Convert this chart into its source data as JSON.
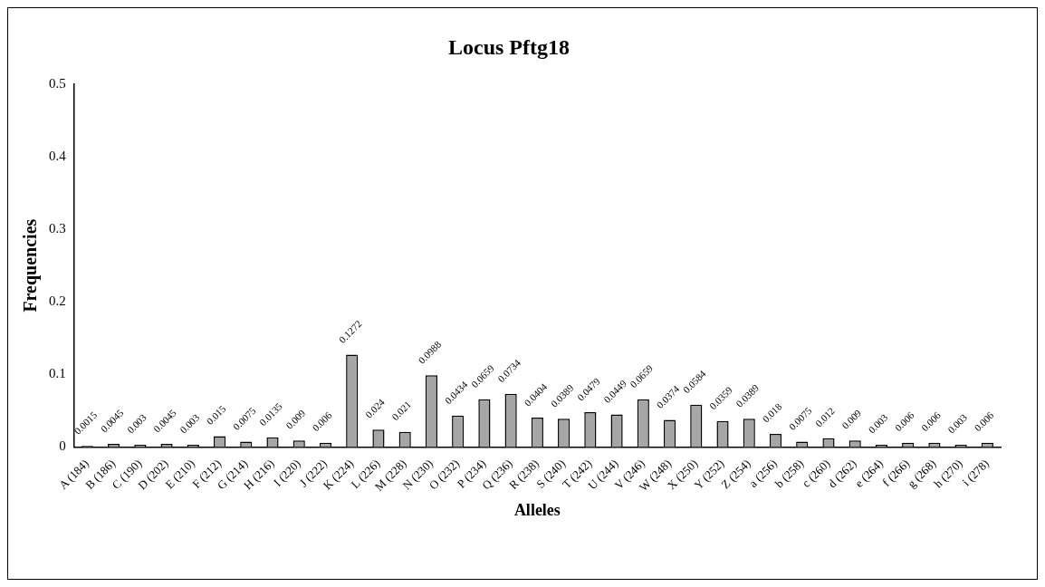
{
  "chart_data": {
    "type": "bar",
    "title": "Locus Pftg18",
    "xlabel": "Alleles",
    "ylabel": "Frequencies",
    "categories": [
      "A (184)",
      "B (186)",
      "C (190)",
      "D (202)",
      "E (210)",
      "F (212)",
      "G (214)",
      "H (216)",
      "I (220)",
      "J (222)",
      "K (224)",
      "L (226)",
      "M (228)",
      "N (230)",
      "O (232)",
      "P (234)",
      "Q (236)",
      "R (238)",
      "S (240)",
      "T (242)",
      "U (244)",
      "V (246)",
      "W (248)",
      "X (250)",
      "Y (252)",
      "Z (254)",
      "a (256)",
      "b (258)",
      "c (260)",
      "d (262)",
      "e (264)",
      "f (266)",
      "g (268)",
      "h (270)",
      "i (278)"
    ],
    "values": [
      0.0015,
      0.0045,
      0.003,
      0.0045,
      0.003,
      0.015,
      0.0075,
      0.0135,
      0.009,
      0.006,
      0.1272,
      0.024,
      0.021,
      0.0988,
      0.0434,
      0.0659,
      0.0734,
      0.0404,
      0.0389,
      0.0479,
      0.0449,
      0.0659,
      0.0374,
      0.0584,
      0.0359,
      0.0389,
      0.018,
      0.0075,
      0.012,
      0.009,
      0.003,
      0.006,
      0.006,
      0.003,
      0.006
    ],
    "color": "#a6a6a6",
    "ylim": [
      0,
      0.5
    ],
    "yticks": [
      0,
      0.1,
      0.2,
      0.3,
      0.4,
      0.5
    ],
    "grid": false,
    "legend": false,
    "data_labels": true
  }
}
